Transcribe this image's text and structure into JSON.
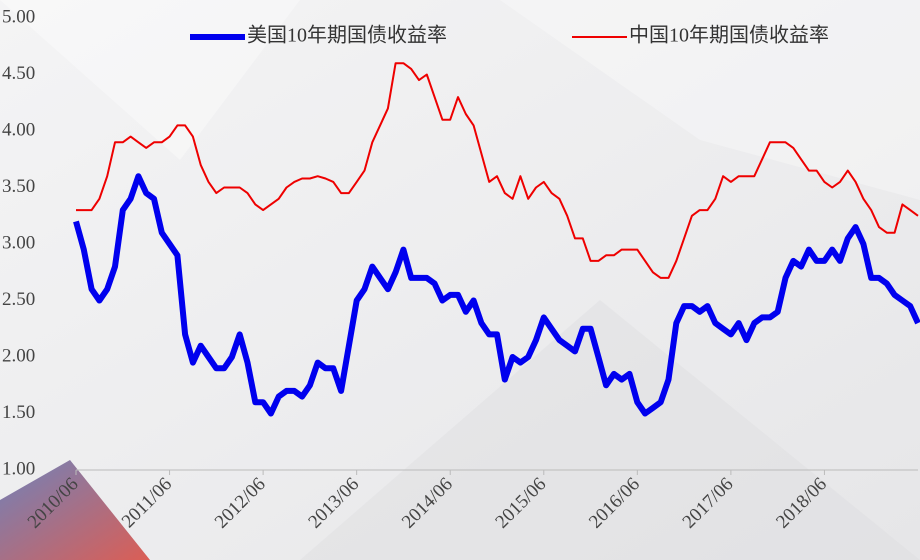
{
  "chart_data": {
    "type": "line",
    "categories": [
      "2010/06",
      null,
      null,
      null,
      null,
      null,
      null,
      null,
      null,
      null,
      null,
      null,
      "2011/06",
      null,
      null,
      null,
      null,
      null,
      null,
      null,
      null,
      null,
      null,
      null,
      "2012/06",
      null,
      null,
      null,
      null,
      null,
      null,
      null,
      null,
      null,
      null,
      null,
      "2013/06",
      null,
      null,
      null,
      null,
      null,
      null,
      null,
      null,
      null,
      null,
      null,
      "2014/06",
      null,
      null,
      null,
      null,
      null,
      null,
      null,
      null,
      null,
      null,
      null,
      "2015/06",
      null,
      null,
      null,
      null,
      null,
      null,
      null,
      null,
      null,
      null,
      null,
      "2016/06",
      null,
      null,
      null,
      null,
      null,
      null,
      null,
      null,
      null,
      null,
      null,
      "2017/06",
      null,
      null,
      null,
      null,
      null,
      null,
      null,
      null,
      null,
      null,
      null,
      "2018/06",
      null,
      null,
      null,
      null,
      null,
      null,
      null,
      null,
      null,
      null,
      null,
      null
    ],
    "series": [
      {
        "name": "美国10年期国债收益率",
        "color": "#0000ee",
        "width": 6,
        "values": [
          3.2,
          2.95,
          2.6,
          2.5,
          2.6,
          2.8,
          3.3,
          3.4,
          3.6,
          3.45,
          3.4,
          3.1,
          3.0,
          2.9,
          2.2,
          1.95,
          2.1,
          2.0,
          1.9,
          1.9,
          2.0,
          2.2,
          1.95,
          1.6,
          1.6,
          1.5,
          1.65,
          1.7,
          1.7,
          1.65,
          1.75,
          1.95,
          1.9,
          1.9,
          1.7,
          2.1,
          2.5,
          2.6,
          2.8,
          2.7,
          2.6,
          2.75,
          2.95,
          2.7,
          2.7,
          2.7,
          2.65,
          2.5,
          2.55,
          2.55,
          2.4,
          2.5,
          2.3,
          2.2,
          2.2,
          1.8,
          2.0,
          1.95,
          2.0,
          2.15,
          2.35,
          2.25,
          2.15,
          2.1,
          2.05,
          2.25,
          2.25,
          2.0,
          1.75,
          1.85,
          1.8,
          1.85,
          1.6,
          1.5,
          1.55,
          1.6,
          1.8,
          2.3,
          2.45,
          2.45,
          2.4,
          2.45,
          2.3,
          2.25,
          2.2,
          2.3,
          2.15,
          2.3,
          2.35,
          2.35,
          2.4,
          2.7,
          2.85,
          2.8,
          2.95,
          2.85,
          2.85,
          2.95,
          2.85,
          3.05,
          3.15,
          3.0,
          2.7,
          2.7,
          2.65,
          2.55,
          2.5,
          2.45,
          2.3
        ]
      },
      {
        "name": "中国10年期国债收益率",
        "color": "#ee0000",
        "width": 2,
        "values": [
          3.3,
          3.3,
          3.3,
          3.4,
          3.6,
          3.9,
          3.9,
          3.95,
          3.9,
          3.85,
          3.9,
          3.9,
          3.95,
          4.05,
          4.05,
          3.95,
          3.7,
          3.55,
          3.45,
          3.5,
          3.5,
          3.5,
          3.45,
          3.35,
          3.3,
          3.35,
          3.4,
          3.5,
          3.55,
          3.58,
          3.58,
          3.6,
          3.58,
          3.55,
          3.45,
          3.45,
          3.55,
          3.65,
          3.9,
          4.05,
          4.2,
          4.6,
          4.6,
          4.55,
          4.45,
          4.5,
          4.3,
          4.1,
          4.1,
          4.3,
          4.15,
          4.05,
          3.8,
          3.55,
          3.6,
          3.45,
          3.4,
          3.6,
          3.4,
          3.5,
          3.55,
          3.45,
          3.4,
          3.25,
          3.05,
          3.05,
          2.85,
          2.85,
          2.9,
          2.9,
          2.95,
          2.95,
          2.95,
          2.85,
          2.75,
          2.7,
          2.7,
          2.85,
          3.05,
          3.25,
          3.3,
          3.3,
          3.4,
          3.6,
          3.55,
          3.6,
          3.6,
          3.6,
          3.75,
          3.9,
          3.9,
          3.9,
          3.85,
          3.75,
          3.65,
          3.65,
          3.55,
          3.5,
          3.55,
          3.65,
          3.55,
          3.4,
          3.3,
          3.15,
          3.1,
          3.1,
          3.35,
          3.3,
          3.25
        ]
      }
    ],
    "ylim": [
      1.0,
      5.0
    ],
    "yticks": [
      {
        "value": 1.0,
        "label": "1.00"
      },
      {
        "value": 1.5,
        "label": "1.50"
      },
      {
        "value": 2.0,
        "label": "2.00"
      },
      {
        "value": 2.5,
        "label": "2.50"
      },
      {
        "value": 3.0,
        "label": "3.00"
      },
      {
        "value": 3.5,
        "label": "3.50"
      },
      {
        "value": 4.0,
        "label": "4.00"
      },
      {
        "value": 4.5,
        "label": "4.50"
      },
      {
        "value": 5.0,
        "label": "5.00"
      }
    ],
    "grid": false,
    "legend": "top"
  }
}
